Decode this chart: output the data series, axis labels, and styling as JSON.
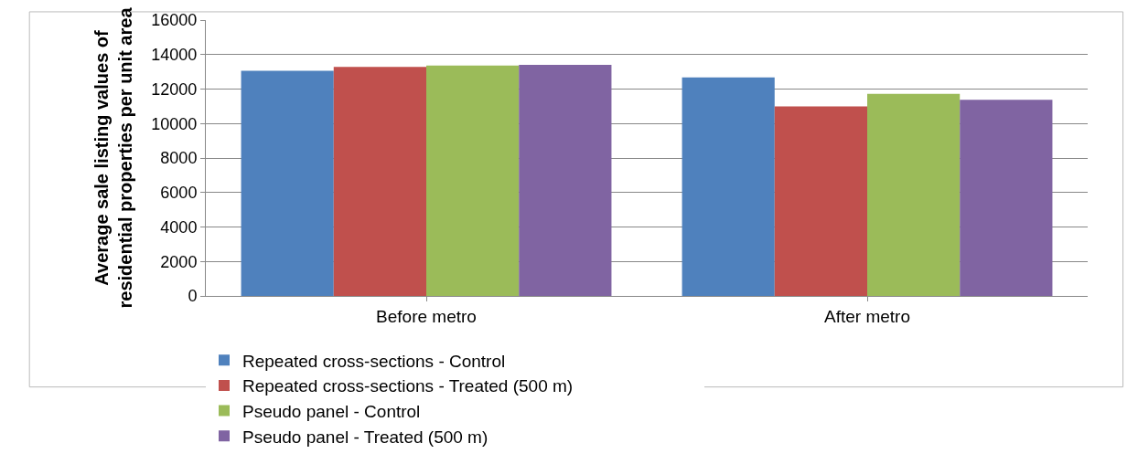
{
  "chart_data": {
    "type": "bar",
    "ylabel": "Average sale listing values of\nresidential properties per unit area",
    "categories": [
      "Before metro",
      "After metro"
    ],
    "series": [
      {
        "name": "Repeated cross-sections - Control",
        "color": "#4f81bd",
        "values": [
          13060,
          12680
        ]
      },
      {
        "name": "Repeated cross-sections - Treated (500 m)",
        "color": "#c0504d",
        "values": [
          13290,
          11000
        ]
      },
      {
        "name": "Pseudo panel - Control",
        "color": "#9bbb59",
        "values": [
          13370,
          11720
        ]
      },
      {
        "name": "Pseudo panel - Treated (500 m)",
        "color": "#8064a2",
        "values": [
          13400,
          11380
        ]
      }
    ],
    "ylim": [
      0,
      16000
    ],
    "yticks": [
      0,
      2000,
      4000,
      6000,
      8000,
      10000,
      12000,
      14000,
      16000
    ],
    "grid": "y",
    "legend": "bottom"
  }
}
